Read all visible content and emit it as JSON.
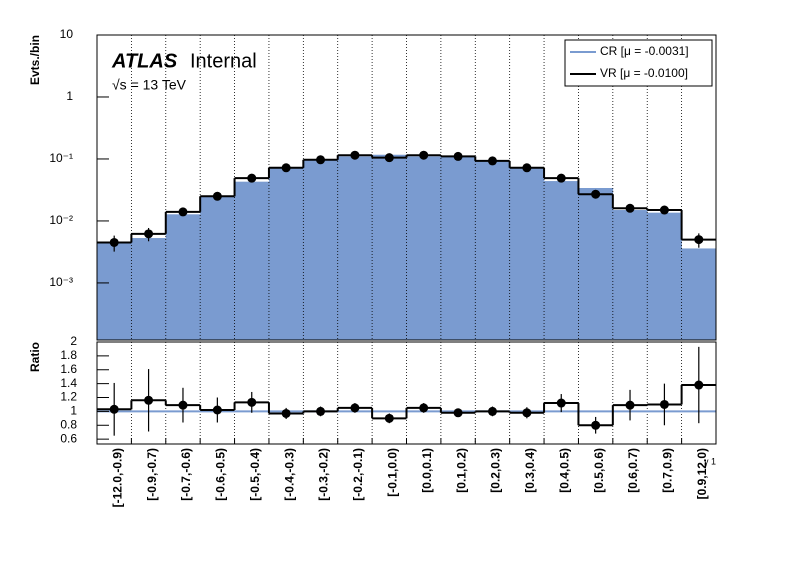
{
  "chart_data": [
    {
      "type": "step-log",
      "atlas_label": "ATLAS",
      "status": "Internal",
      "energy": "√s = 13 TeV",
      "y_label": "Evts./bin",
      "x_label": "γ 1",
      "categories": [
        "[-12.0,-0.9)",
        "[-0.9,-0.7)",
        "[-0.7,-0.6)",
        "[-0.6,-0.5)",
        "[-0.5,-0.4)",
        "[-0.4,-0.3)",
        "[-0.3,-0.2)",
        "[-0.2,-0.1)",
        "[-0.1,0.0)",
        "[0.0,0.1)",
        "[0.1,0.2)",
        "[0.2,0.3)",
        "[0.3,0.4)",
        "[0.4,0.5)",
        "[0.5,0.6)",
        "[0.6,0.7)",
        "[0.7,0.9)",
        "[0.9,12.0)"
      ],
      "series": [
        {
          "name": "CR [μ = -0.0031]",
          "color": "#7a9bd0",
          "values": [
            0.0044,
            0.0053,
            0.0128,
            0.0245,
            0.043,
            0.074,
            0.097,
            0.11,
            0.117,
            0.11,
            0.112,
            0.093,
            0.073,
            0.044,
            0.034,
            0.015,
            0.0136,
            0.0036
          ]
        },
        {
          "name": "VR [μ = -0.0100]",
          "color": "#000000",
          "values": [
            0.0045,
            0.0062,
            0.014,
            0.025,
            0.049,
            0.072,
            0.097,
            0.115,
            0.105,
            0.115,
            0.11,
            0.093,
            0.072,
            0.049,
            0.027,
            0.016,
            0.015,
            0.005
          ],
          "errors": [
            0.0013,
            0.0015,
            0.0018,
            0.0022,
            0.004,
            0.004,
            0.005,
            0.006,
            0.005,
            0.005,
            0.005,
            0.004,
            0.004,
            0.004,
            0.003,
            0.002,
            0.002,
            0.0013
          ]
        }
      ],
      "ylim": [
        0.00012,
        10
      ],
      "yticks": [
        {
          "value": 0.001,
          "label": "10⁻³"
        },
        {
          "value": 0.01,
          "label": "10⁻²"
        },
        {
          "value": 0.1,
          "label": "10⁻¹"
        },
        1,
        10
      ],
      "grid": true,
      "legend": "upper right"
    },
    {
      "type": "ratio",
      "y_label": "Ratio",
      "reference_line": 1,
      "reference_color": "#7a9bd0",
      "series": [
        {
          "color": "#000000",
          "values": [
            1.03,
            1.16,
            1.09,
            1.02,
            1.13,
            0.97,
            1.0,
            1.05,
            0.9,
            1.05,
            0.98,
            1.0,
            0.98,
            1.12,
            0.8,
            1.09,
            1.1,
            1.38
          ],
          "errors": [
            0.38,
            0.45,
            0.25,
            0.18,
            0.15,
            0.08,
            0.07,
            0.07,
            0.07,
            0.07,
            0.06,
            0.07,
            0.08,
            0.13,
            0.12,
            0.22,
            0.3,
            0.55
          ]
        }
      ],
      "ylim": [
        0.53,
        2.0
      ],
      "yticks": [
        0.6,
        0.8,
        1,
        1.2,
        1.4,
        1.6,
        1.8,
        2
      ],
      "grid": true
    }
  ]
}
